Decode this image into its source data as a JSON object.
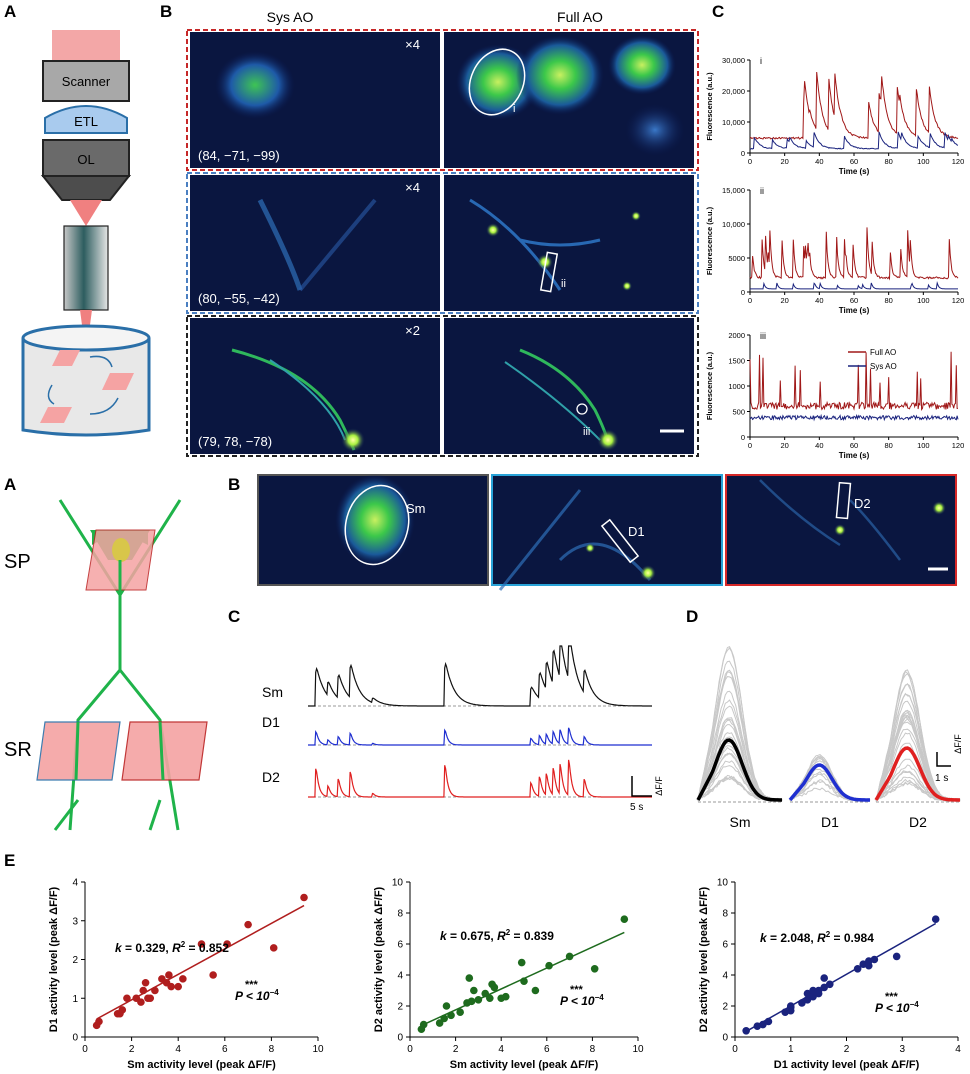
{
  "panel_letters": {
    "top_a": "A",
    "top_b": "B",
    "top_c": "C",
    "bot_a": "A",
    "bot_b": "B",
    "bot_c": "C",
    "bot_d": "D",
    "bot_e": "E"
  },
  "microscope": {
    "scanner": "Scanner",
    "etl": "ETL",
    "ol": "OL"
  },
  "top_b": {
    "col_sys": "Sys AO",
    "col_full": "Full AO",
    "rows": [
      {
        "zoom": "×4",
        "coords": "(84, −71, −99)",
        "roi": "i",
        "color": "#c62828"
      },
      {
        "zoom": "×4",
        "coords": "(80, −55, −42)",
        "roi": "ii",
        "color": "#4a7fc1"
      },
      {
        "zoom": "×2",
        "coords": "(79, 78, −78)",
        "roi": "iii",
        "color": "#222222"
      }
    ]
  },
  "top_c": {
    "ylabel": "Fluorescence (a.u.)",
    "xlabel": "Time (s)",
    "xticks": [
      "0",
      "20",
      "40",
      "60",
      "80",
      "100",
      "120"
    ],
    "panels": [
      {
        "label": "i",
        "yticks": [
          "0",
          "10,000",
          "20,000",
          "30,000"
        ],
        "ymax": 30000
      },
      {
        "label": "ii",
        "yticks": [
          "0",
          "5000",
          "10,000",
          "15,000"
        ],
        "ymax": 15000
      },
      {
        "label": "iii",
        "yticks": [
          "0",
          "500",
          "1000",
          "1500",
          "2000"
        ],
        "ymax": 2000
      }
    ],
    "legend": [
      {
        "name": "Full AO",
        "color": "#a01818"
      },
      {
        "name": "Sys AO",
        "color": "#1a237e"
      }
    ]
  },
  "bot_a": {
    "sp": "SP",
    "sr": "SR"
  },
  "bot_b": {
    "labels": [
      "Sm",
      "D1",
      "D2"
    ],
    "frame_colors": [
      "#555555",
      "#29a3d8",
      "#d62828"
    ]
  },
  "bot_c": {
    "traces": [
      {
        "name": "Sm",
        "color": "#111111"
      },
      {
        "name": "D1",
        "color": "#1f2fd0"
      },
      {
        "name": "D2",
        "color": "#e02020"
      }
    ],
    "scale_label": "ΔF/F",
    "scale_time": "5 s"
  },
  "bot_d": {
    "labels": [
      "Sm",
      "D1",
      "D2"
    ],
    "colors": [
      "#000000",
      "#1f2fd0",
      "#e02020"
    ],
    "scale_label": "ΔF/F",
    "scale_time": "1 s"
  },
  "chart_data": [
    {
      "type": "scatter",
      "title": "",
      "xlabel": "Sm activity level (peak ΔF/F)",
      "ylabel": "D1 activity level (peak ΔF/F)",
      "xlim": [
        0,
        10
      ],
      "ylim": [
        0,
        4
      ],
      "xticks": [
        0,
        2,
        4,
        6,
        8,
        10
      ],
      "yticks": [
        0,
        1,
        2,
        3,
        4
      ],
      "color": "#b01e1e",
      "k": "0.329",
      "r2": "0.852",
      "sig": "***",
      "p": "P < 10",
      "fit": {
        "slope": 0.329,
        "intercept": 0.3
      },
      "x": [
        0.5,
        0.6,
        1.4,
        1.5,
        1.6,
        1.8,
        2.2,
        2.4,
        2.5,
        2.6,
        2.7,
        2.8,
        3.0,
        3.3,
        3.5,
        3.6,
        3.7,
        4.0,
        4.2,
        5.0,
        5.5,
        6.1,
        7.0,
        8.1,
        9.4
      ],
      "y": [
        0.3,
        0.4,
        0.6,
        0.6,
        0.7,
        1.0,
        1.0,
        0.9,
        1.2,
        1.4,
        1.0,
        1.0,
        1.2,
        1.5,
        1.4,
        1.6,
        1.3,
        1.3,
        1.5,
        2.4,
        1.6,
        2.4,
        2.9,
        2.3,
        3.6
      ]
    },
    {
      "type": "scatter",
      "title": "",
      "xlabel": "Sm activity level (peak ΔF/F)",
      "ylabel": "D2 activity level (peak ΔF/F)",
      "xlim": [
        0,
        10
      ],
      "ylim": [
        0,
        10
      ],
      "xticks": [
        0,
        2,
        4,
        6,
        8,
        10
      ],
      "yticks": [
        0,
        2,
        4,
        6,
        8,
        10
      ],
      "color": "#1e6b1e",
      "k": "0.675",
      "r2": "0.839",
      "sig": "***",
      "p": "P < 10",
      "fit": {
        "slope": 0.675,
        "intercept": 0.4
      },
      "x": [
        0.5,
        0.6,
        1.3,
        1.5,
        1.6,
        1.8,
        2.2,
        2.5,
        2.6,
        2.7,
        2.8,
        3.0,
        3.3,
        3.5,
        3.6,
        3.7,
        4.0,
        4.2,
        4.9,
        5.0,
        5.5,
        6.1,
        7.0,
        8.1,
        9.4
      ],
      "y": [
        0.5,
        0.8,
        0.9,
        1.2,
        2.0,
        1.4,
        1.6,
        2.2,
        3.8,
        2.3,
        3.0,
        2.4,
        2.8,
        2.5,
        3.4,
        3.2,
        2.5,
        2.6,
        4.8,
        3.6,
        3.0,
        4.6,
        5.2,
        4.4,
        7.6
      ]
    },
    {
      "type": "scatter",
      "title": "",
      "xlabel": "D1 activity level (peak ΔF/F)",
      "ylabel": "D2 activity level (peak ΔF/F)",
      "xlim": [
        0,
        4
      ],
      "ylim": [
        0,
        10
      ],
      "xticks": [
        0,
        1,
        2,
        3,
        4
      ],
      "yticks": [
        0,
        2,
        4,
        6,
        8,
        10
      ],
      "color": "#1a237e",
      "k": "2.048",
      "r2": "0.984",
      "sig": "***",
      "p": "P < 10",
      "fit": {
        "slope": 2.048,
        "intercept": -0.05
      },
      "x": [
        0.2,
        0.4,
        0.5,
        0.6,
        0.9,
        1.0,
        1.0,
        1.2,
        1.3,
        1.3,
        1.4,
        1.4,
        1.5,
        1.5,
        1.6,
        1.6,
        1.7,
        2.2,
        2.3,
        2.4,
        2.4,
        2.5,
        2.9,
        3.6,
        1.0
      ],
      "y": [
        0.4,
        0.7,
        0.8,
        1.0,
        1.6,
        1.9,
        2.0,
        2.2,
        2.4,
        2.8,
        2.6,
        3.0,
        3.0,
        2.8,
        3.2,
        3.8,
        3.4,
        4.4,
        4.7,
        4.6,
        4.9,
        5.0,
        5.2,
        7.6,
        1.7
      ]
    }
  ]
}
